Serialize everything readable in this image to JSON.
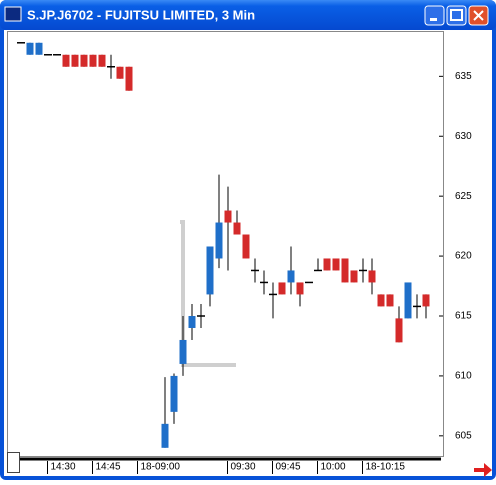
{
  "chart_data": {
    "type": "candlestick",
    "title": "S.JP.J6702 - FUJITSU LIMITED, 3 Min",
    "categories": [
      null,
      null,
      null,
      "14:30",
      null,
      null,
      null,
      null,
      "14:45",
      null,
      null,
      null,
      null,
      "18-09:00",
      null,
      null,
      null,
      null,
      null,
      null,
      null,
      null,
      null,
      "09:30",
      null,
      null,
      null,
      null,
      "09:45",
      null,
      null,
      null,
      null,
      "10:00",
      null,
      null,
      null,
      null,
      "18-10:15",
      null,
      null,
      null,
      null,
      null,
      null,
      null
    ],
    "open": [
      637.8,
      636.8,
      636.8,
      636.8,
      636.8,
      636.8,
      636.8,
      636.8,
      636.8,
      636.8,
      635.8,
      635.8,
      635.8,
      null,
      null,
      null,
      604,
      607,
      611,
      614,
      615,
      616.8,
      619.8,
      623.8,
      622.8,
      621.8,
      618.8,
      617.8,
      616.8,
      617.8,
      617.8,
      617.8,
      617.8,
      618.8,
      619.8,
      619.8,
      619.8,
      618.8,
      618.8,
      618.8,
      616.8,
      616.8,
      614.8,
      614.8,
      615.8,
      616.8
    ],
    "high": [
      637.8,
      637.8,
      637.8,
      636.8,
      636.8,
      636.8,
      636.8,
      636.8,
      636.8,
      636.8,
      636.8,
      635.8,
      635.8,
      null,
      null,
      null,
      609.9,
      610.2,
      615,
      616,
      616,
      620.8,
      626.8,
      625.8,
      623.8,
      621.8,
      619.8,
      618.8,
      617.8,
      617.8,
      620.8,
      617.8,
      617.8,
      619.8,
      619.8,
      619.8,
      619.8,
      618.8,
      619.8,
      619.8,
      616.8,
      616.8,
      615.8,
      617.8,
      616.8,
      616.8
    ],
    "low": [
      637.8,
      636.8,
      636.8,
      636.8,
      636.8,
      635.8,
      635.8,
      635.8,
      635.8,
      635.8,
      634.8,
      634.8,
      633.8,
      null,
      null,
      null,
      604,
      606,
      610,
      613,
      614,
      615.8,
      619,
      618.8,
      621.8,
      619.8,
      617.8,
      616.8,
      614.8,
      616.8,
      616.8,
      615.8,
      617.8,
      618.8,
      618.8,
      618.8,
      617.8,
      617.8,
      617.8,
      616.8,
      615.8,
      615.8,
      612.8,
      614.8,
      614.8,
      614.8
    ],
    "close": [
      637.8,
      637.8,
      637.8,
      636.8,
      636.8,
      635.8,
      635.8,
      635.8,
      635.8,
      635.8,
      635.8,
      634.8,
      633.8,
      null,
      null,
      null,
      606,
      610,
      613,
      615,
      615,
      620.8,
      622.8,
      622.8,
      621.8,
      619.8,
      618.8,
      617.8,
      616.8,
      616.8,
      618.8,
      616.8,
      617.8,
      618.8,
      618.8,
      618.8,
      617.8,
      617.8,
      618.8,
      617.8,
      615.8,
      615.8,
      612.8,
      617.8,
      615.8,
      615.8
    ],
    "up_color": "#1f6fc9",
    "down_color": "#d42a2a",
    "ylim": [
      603.4,
      638.7
    ],
    "yticks": [
      605,
      610,
      615,
      620,
      625,
      630,
      635
    ]
  }
}
